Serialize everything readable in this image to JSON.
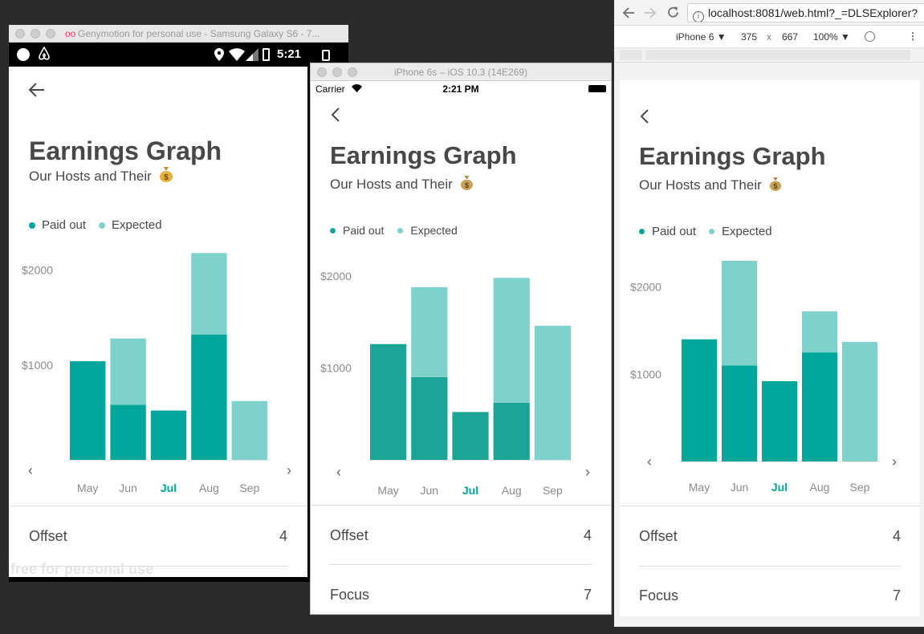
{
  "genymotion": {
    "title": "Genymotion for personal use - Samsung Galaxy S6 - 7...",
    "time": "5:21",
    "watermark": "free for personal use"
  },
  "simulator": {
    "title": "iPhone 6s – iOS 10.3 (14E269)",
    "carrier": "Carrier",
    "time": "2:21 PM"
  },
  "browser": {
    "url": "localhost:8081/web.html?_=DLSExplorer?",
    "device": "iPhone 6",
    "width": "375",
    "times": "x",
    "height": "667",
    "zoom": "100%"
  },
  "screen": {
    "title": "Earnings Graph",
    "subtitle": "Our Hosts and Their",
    "legend": {
      "paid": "Paid out",
      "expected": "Expected"
    },
    "prev": "‹",
    "next": "›",
    "offset_label": "Offset",
    "offset_value": "4",
    "focus_label": "Focus",
    "focus_value": "7"
  },
  "colors": {
    "paid": "#00a699",
    "expected": "#7fd2cb",
    "paid_ios": "#1aa597",
    "selected_month": "#00a699"
  },
  "chart_data": [
    {
      "type": "bar",
      "panel": "Genymotion Android",
      "categories": [
        "May",
        "Jun",
        "Jul",
        "Aug",
        "Sep"
      ],
      "selected": "Jul",
      "series": [
        {
          "name": "Paid out",
          "values": [
            1040,
            580,
            520,
            1320,
            0
          ]
        },
        {
          "name": "Expected",
          "values": [
            0,
            700,
            0,
            860,
            620
          ]
        }
      ],
      "yticks": [
        "$1000",
        "$2000"
      ],
      "ylim": [
        0,
        2200
      ]
    },
    {
      "type": "bar",
      "panel": "iPhone 6s Simulator",
      "categories": [
        "May",
        "Jun",
        "Jul",
        "Aug",
        "Sep"
      ],
      "selected": "Jul",
      "series": [
        {
          "name": "Paid out",
          "values": [
            1260,
            900,
            520,
            620,
            0
          ]
        },
        {
          "name": "Expected",
          "values": [
            0,
            980,
            0,
            1360,
            1460
          ]
        }
      ],
      "yticks": [
        "$1000",
        "$2000"
      ],
      "ylim": [
        0,
        2000
      ]
    },
    {
      "type": "bar",
      "panel": "Chrome web",
      "categories": [
        "May",
        "Jun",
        "Jul",
        "Aug",
        "Sep"
      ],
      "selected": "Jul",
      "series": [
        {
          "name": "Paid out",
          "values": [
            1400,
            1100,
            920,
            1250,
            0
          ]
        },
        {
          "name": "Expected",
          "values": [
            0,
            1200,
            0,
            470,
            1370
          ]
        }
      ],
      "yticks": [
        "$1000",
        "$2000"
      ],
      "ylim": [
        0,
        2300
      ]
    }
  ]
}
